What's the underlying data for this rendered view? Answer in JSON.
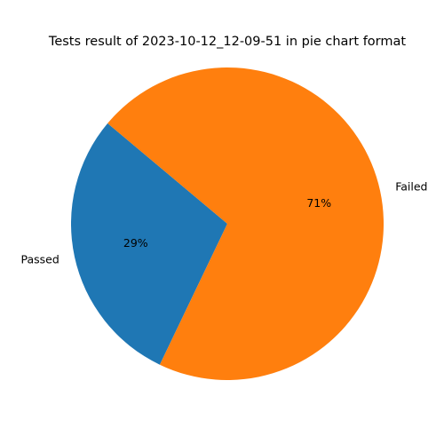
{
  "chart_data": {
    "type": "pie",
    "title": "Tests result of 2023-10-12_12-09-51 in pie chart format",
    "start_angle_deg": 140,
    "direction": "counterclockwise",
    "slices": [
      {
        "label": "Passed",
        "value": 29,
        "pct_label": "29%",
        "color": "#1f77b4"
      },
      {
        "label": "Failed",
        "value": 71,
        "pct_label": "71%",
        "color": "#ff7f0e"
      }
    ]
  }
}
